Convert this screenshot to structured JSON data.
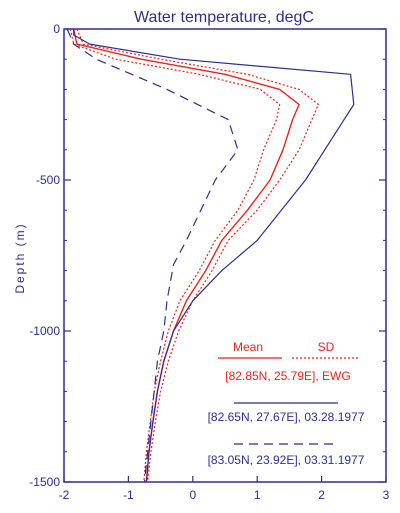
{
  "chart_data": {
    "type": "line",
    "title": "Water temperature, degC",
    "xlabel": "",
    "ylabel": "Depth (m)",
    "xlim": [
      -2,
      3
    ],
    "ylim": [
      -1500,
      0
    ],
    "x_ticks": [
      "-2",
      "-1",
      "0",
      "1",
      "2",
      "3"
    ],
    "y_ticks": [
      {
        "value": 0,
        "label": "0"
      },
      {
        "value": -500,
        "label": "-500"
      },
      {
        "value": -1000,
        "label": "-1000"
      },
      {
        "value": -1500,
        "label": "-1500"
      }
    ],
    "colors": {
      "axis": "#2e2e8f",
      "mean": "#e8231f",
      "obs": "#2e2e8f"
    },
    "legend": {
      "mean_label": "Mean",
      "sd_label": "SD",
      "climatology_label": "[82.85N, 25.79E], EWG",
      "obs1_label": "[82.65N, 27.67E], 03.28.1977",
      "obs2_label": "[83.05N, 23.92E], 03.31.1977"
    },
    "series": [
      {
        "style": "solid-red",
        "points": [
          [
            -1.85,
            0
          ],
          [
            -1.8,
            -50
          ],
          [
            -0.8,
            -100
          ],
          [
            0.5,
            -150
          ],
          [
            1.35,
            -200
          ],
          [
            1.65,
            -250
          ],
          [
            1.55,
            -300
          ],
          [
            1.4,
            -400
          ],
          [
            1.2,
            -500
          ],
          [
            0.85,
            -600
          ],
          [
            0.45,
            -700
          ],
          [
            0.2,
            -800
          ],
          [
            -0.1,
            -900
          ],
          [
            -0.3,
            -1000
          ],
          [
            -0.45,
            -1100
          ],
          [
            -0.55,
            -1200
          ],
          [
            -0.62,
            -1300
          ],
          [
            -0.68,
            -1400
          ],
          [
            -0.72,
            -1500
          ]
        ]
      },
      {
        "style": "dotted-red",
        "points": [
          [
            -1.8,
            0
          ],
          [
            -1.7,
            -50
          ],
          [
            -0.5,
            -100
          ],
          [
            0.85,
            -150
          ],
          [
            1.65,
            -200
          ],
          [
            1.95,
            -250
          ],
          [
            1.85,
            -300
          ],
          [
            1.65,
            -400
          ],
          [
            1.35,
            -500
          ],
          [
            1.0,
            -600
          ],
          [
            0.55,
            -700
          ],
          [
            0.3,
            -800
          ],
          [
            0.0,
            -900
          ],
          [
            -0.22,
            -1000
          ],
          [
            -0.38,
            -1100
          ],
          [
            -0.5,
            -1200
          ],
          [
            -0.58,
            -1300
          ],
          [
            -0.65,
            -1400
          ],
          [
            -0.7,
            -1500
          ]
        ]
      },
      {
        "style": "dotted-red",
        "points": [
          [
            -1.9,
            0
          ],
          [
            -1.85,
            -50
          ],
          [
            -1.2,
            -100
          ],
          [
            0.1,
            -150
          ],
          [
            1.05,
            -200
          ],
          [
            1.35,
            -250
          ],
          [
            1.3,
            -300
          ],
          [
            1.1,
            -400
          ],
          [
            0.95,
            -500
          ],
          [
            0.7,
            -600
          ],
          [
            0.35,
            -700
          ],
          [
            0.1,
            -800
          ],
          [
            -0.2,
            -900
          ],
          [
            -0.38,
            -1000
          ],
          [
            -0.5,
            -1100
          ],
          [
            -0.6,
            -1200
          ],
          [
            -0.66,
            -1300
          ],
          [
            -0.72,
            -1400
          ],
          [
            -0.76,
            -1500
          ]
        ]
      },
      {
        "style": "solid-blue",
        "points": [
          [
            -1.85,
            0
          ],
          [
            -1.85,
            -20
          ],
          [
            -1.6,
            -50
          ],
          [
            -0.2,
            -100
          ],
          [
            2.45,
            -150
          ],
          [
            2.5,
            -250
          ],
          [
            2.35,
            -300
          ],
          [
            1.75,
            -500
          ],
          [
            1.0,
            -700
          ],
          [
            0.45,
            -800
          ],
          [
            0.0,
            -900
          ],
          [
            -0.3,
            -1000
          ],
          [
            -0.45,
            -1100
          ],
          [
            -0.55,
            -1200
          ],
          [
            -0.62,
            -1300
          ],
          [
            -0.68,
            -1400
          ],
          [
            -0.72,
            -1500
          ]
        ]
      },
      {
        "style": "dashed-blue",
        "points": [
          [
            -1.95,
            0
          ],
          [
            -1.85,
            -50
          ],
          [
            -1.5,
            -100
          ],
          [
            -0.4,
            -200
          ],
          [
            0.55,
            -300
          ],
          [
            0.7,
            -400
          ],
          [
            0.35,
            -500
          ],
          [
            -0.1,
            -700
          ],
          [
            -0.3,
            -780
          ],
          [
            -0.4,
            -900
          ],
          [
            -0.45,
            -1000
          ],
          [
            -0.55,
            -1100
          ],
          [
            -0.6,
            -1200
          ],
          [
            -0.65,
            -1300
          ],
          [
            -0.7,
            -1400
          ],
          [
            -0.75,
            -1500
          ]
        ]
      }
    ]
  }
}
